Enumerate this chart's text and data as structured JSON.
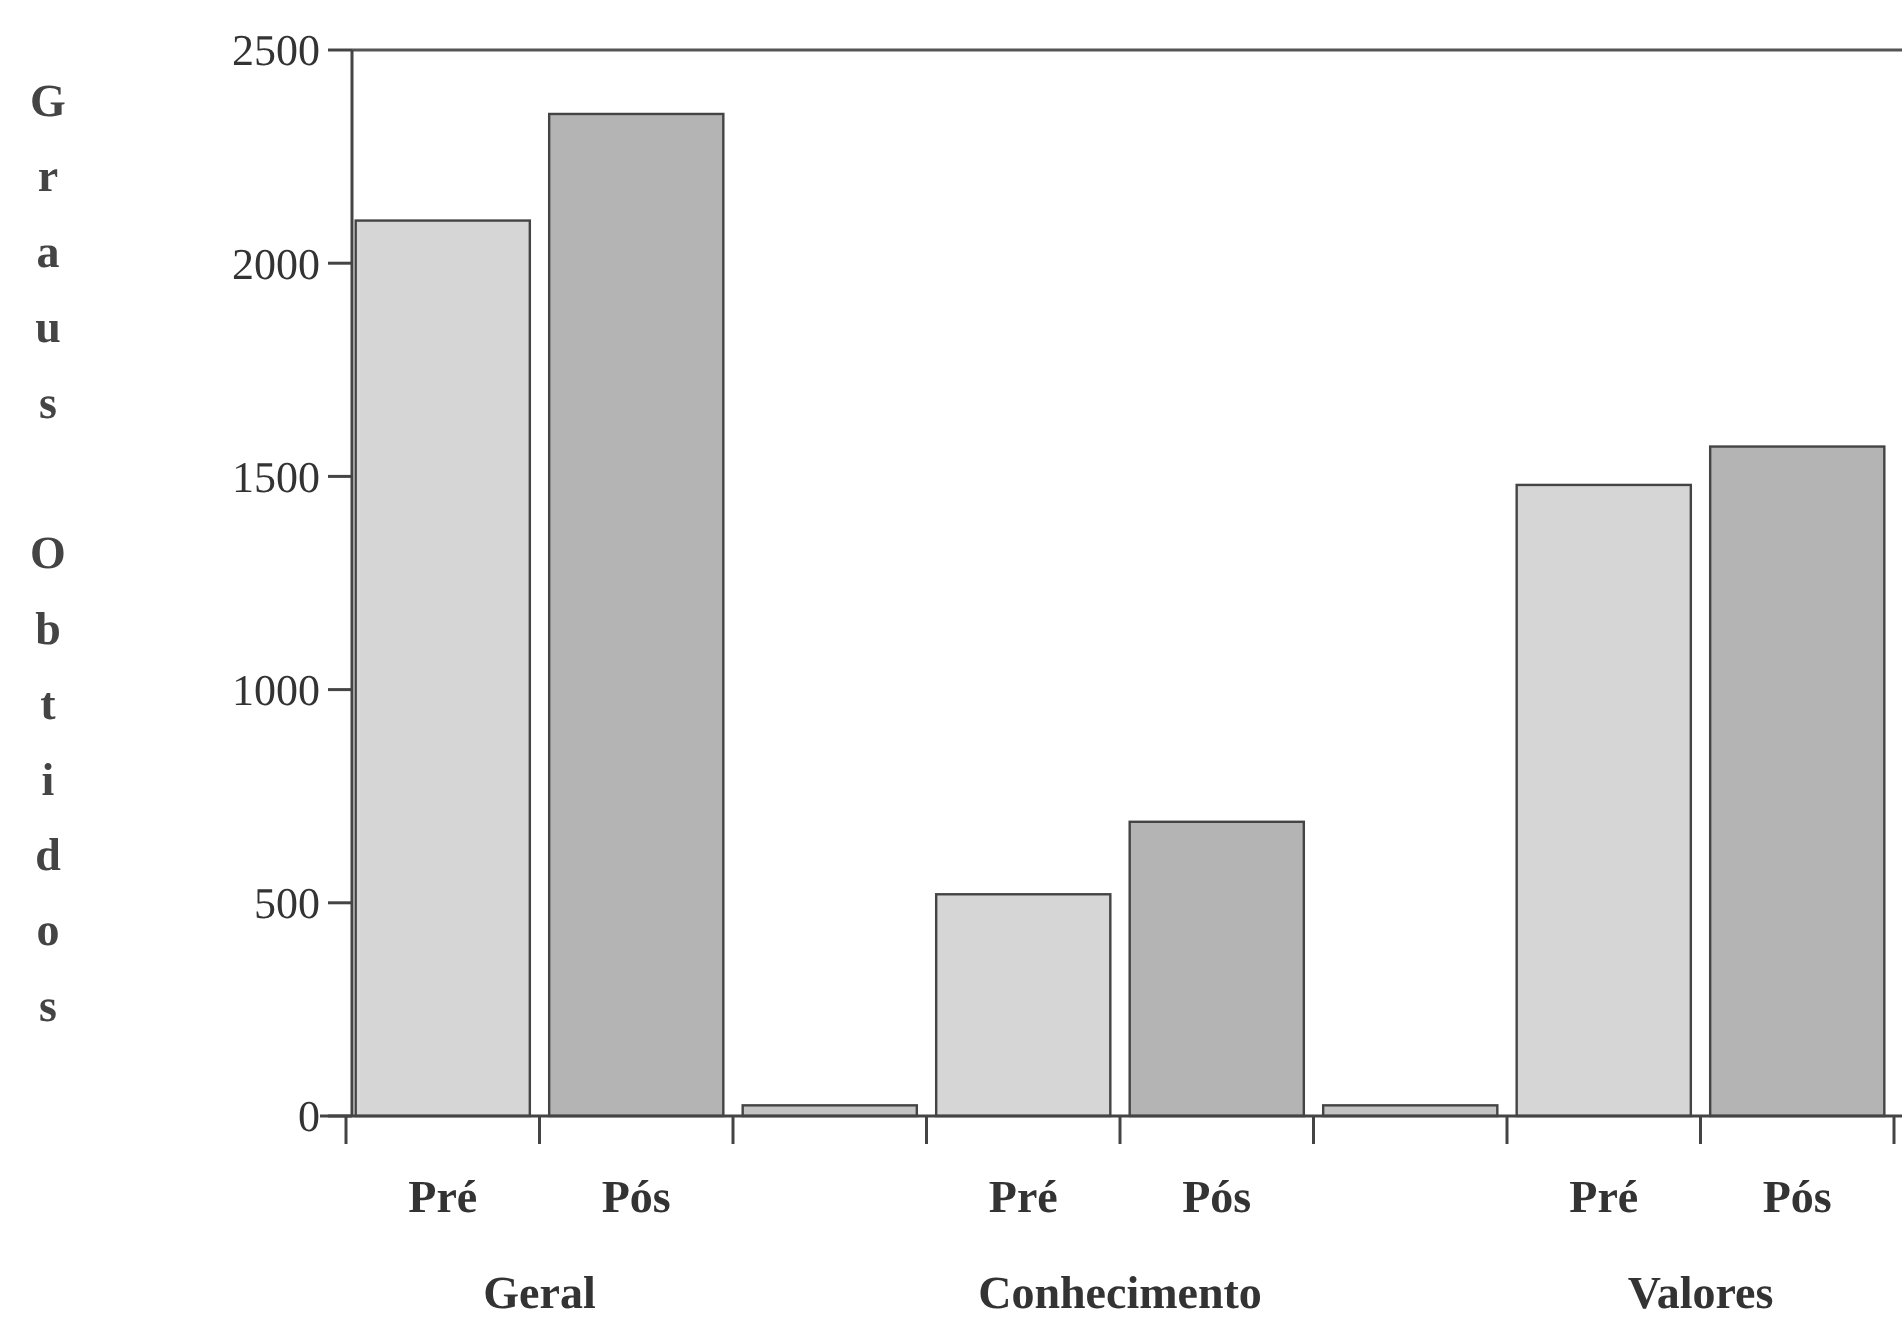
{
  "chart_data": {
    "type": "bar",
    "ylabel": "Graus Obtidos",
    "categories": [
      "Pré",
      "Pós",
      null,
      "Pré",
      "Pós",
      null,
      "Pré",
      "Pós"
    ],
    "values": [
      2100,
      2350,
      25,
      520,
      690,
      25,
      1480,
      1570
    ],
    "colors": [
      "#d6d6d6",
      "#b4b4b4",
      "#c4c4c4",
      "#d6d6d6",
      "#b4b4b4",
      "#c4c4c4",
      "#d6d6d6",
      "#b4b4b4"
    ],
    "ylim": [
      0,
      2500
    ],
    "yticks": [
      0,
      500,
      1000,
      1500,
      2000,
      2500
    ],
    "annotations": [
      "Geral",
      "Conhecimento",
      "Valores"
    ]
  }
}
